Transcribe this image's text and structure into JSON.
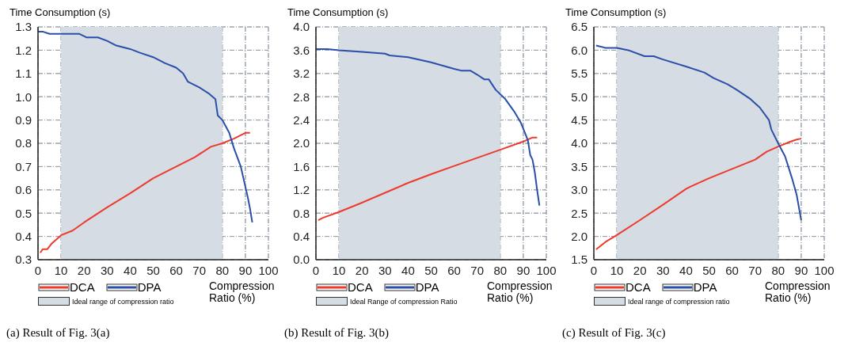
{
  "chart_data": [
    {
      "type": "line",
      "ylabel": "Time Consumption (s)",
      "xlabel": "Compression Ratio (%)",
      "xlim": [
        0,
        100
      ],
      "xticks": [
        0,
        10,
        20,
        30,
        40,
        50,
        60,
        70,
        80,
        90,
        100
      ],
      "ylim": [
        0.3,
        1.3
      ],
      "yticks": [
        {
          "value": 0.3,
          "label": "0.3"
        },
        {
          "value": 0.4,
          "label": "0.4"
        },
        {
          "value": 0.5,
          "label": "0.5"
        },
        {
          "value": 0.6,
          "label": "0.6"
        },
        {
          "value": 0.7,
          "label": "0.7"
        },
        {
          "value": 0.8,
          "label": "0.8"
        },
        {
          "value": 0.9,
          "label": "0.9"
        },
        {
          "value": 1.0,
          "label": "1.0"
        },
        {
          "value": 1.1,
          "label": "1.1"
        },
        {
          "value": 1.2,
          "label": "1.2"
        },
        {
          "value": 1.3,
          "label": "1.3"
        }
      ],
      "grid": true,
      "legend": "bottom",
      "line_style": "solid",
      "marker": "none",
      "bands": [
        {
          "axis": "x",
          "from": 10,
          "to": 80,
          "label": "Ideal range of compression ratio",
          "color": "#d5dce3"
        }
      ],
      "series": [
        {
          "name": "DCA",
          "color": "#ee3a2c",
          "x": [
            1,
            2,
            4,
            6,
            10,
            15,
            20,
            30,
            40,
            50,
            60,
            68,
            75,
            80,
            85,
            90,
            92
          ],
          "values": [
            0.33,
            0.345,
            0.345,
            0.37,
            0.405,
            0.425,
            0.46,
            0.525,
            0.585,
            0.65,
            0.7,
            0.74,
            0.785,
            0.8,
            0.82,
            0.845,
            0.845
          ]
        },
        {
          "name": "DPA",
          "color": "#2a4fa8",
          "x": [
            0,
            2,
            5,
            10,
            18,
            21,
            26,
            30,
            34,
            40,
            44,
            50,
            55,
            60,
            63,
            65,
            70,
            74,
            77,
            78,
            80,
            83,
            85,
            88,
            91,
            92,
            93
          ],
          "values": [
            1.28,
            1.28,
            1.27,
            1.27,
            1.27,
            1.255,
            1.255,
            1.24,
            1.22,
            1.205,
            1.19,
            1.17,
            1.145,
            1.125,
            1.1,
            1.065,
            1.04,
            1.015,
            0.99,
            0.92,
            0.9,
            0.845,
            0.78,
            0.7,
            0.57,
            0.52,
            0.46
          ]
        }
      ],
      "annotations": [
        "(a) Result of Fig. 3(a)"
      ]
    },
    {
      "type": "line",
      "ylabel": "Time Consumption (s)",
      "xlabel": "Compression Ratio (%)",
      "xlim": [
        0,
        100
      ],
      "xticks": [
        0,
        10,
        20,
        30,
        40,
        50,
        60,
        70,
        80,
        90,
        100
      ],
      "ylim": [
        0,
        4
      ],
      "yticks": [
        {
          "value": 0,
          "label": "0.0"
        },
        {
          "value": 0.4,
          "label": "0.4"
        },
        {
          "value": 0.8,
          "label": "0.8"
        },
        {
          "value": 1.2,
          "label": "1.2"
        },
        {
          "value": 1.6,
          "label": "1.6"
        },
        {
          "value": 2.0,
          "label": "2.0"
        },
        {
          "value": 2.4,
          "label": "2.4"
        },
        {
          "value": 2.8,
          "label": "2.8"
        },
        {
          "value": 3.2,
          "label": "3.2"
        },
        {
          "value": 3.6,
          "label": "3.6"
        },
        {
          "value": 4.0,
          "label": "4.0"
        }
      ],
      "grid": true,
      "legend": "bottom",
      "line_style": "solid",
      "marker": "none",
      "bands": [
        {
          "axis": "x",
          "from": 10,
          "to": 80,
          "label": "Ideal Range of compression Ratio",
          "color": "#d5dce3"
        }
      ],
      "series": [
        {
          "name": "DCA",
          "color": "#ee3a2c",
          "x": [
            1,
            3,
            10,
            20,
            30,
            40,
            50,
            60,
            70,
            80,
            90,
            94,
            96
          ],
          "values": [
            0.68,
            0.72,
            0.82,
            0.98,
            1.15,
            1.32,
            1.47,
            1.61,
            1.75,
            1.89,
            2.03,
            2.1,
            2.1
          ]
        },
        {
          "name": "DPA",
          "color": "#2a4fa8",
          "x": [
            0,
            5,
            10,
            20,
            30,
            32,
            40,
            50,
            60,
            63,
            67,
            70,
            73,
            75,
            78,
            82,
            86,
            89,
            91,
            92,
            93,
            94,
            95,
            96,
            97
          ],
          "values": [
            3.62,
            3.62,
            3.6,
            3.57,
            3.54,
            3.51,
            3.48,
            3.39,
            3.28,
            3.25,
            3.25,
            3.18,
            3.1,
            3.1,
            2.92,
            2.77,
            2.55,
            2.35,
            2.15,
            2.05,
            1.8,
            1.72,
            1.5,
            1.2,
            0.93
          ]
        }
      ],
      "annotations": [
        "(b) Result of Fig. 3(b)"
      ]
    },
    {
      "type": "line",
      "ylabel": "Time Consumption (s)",
      "xlabel": "Compression Ratio (%)",
      "xlim": [
        0,
        100
      ],
      "xticks": [
        0,
        10,
        20,
        30,
        40,
        50,
        60,
        70,
        80,
        90,
        100
      ],
      "ylim": [
        1.5,
        6.5
      ],
      "yticks": [
        {
          "value": 1.5,
          "label": "1.5"
        },
        {
          "value": 2.0,
          "label": "2.0"
        },
        {
          "value": 2.5,
          "label": "2.5"
        },
        {
          "value": 3.0,
          "label": "3.0"
        },
        {
          "value": 3.5,
          "label": "3.5"
        },
        {
          "value": 4.0,
          "label": "4.0"
        },
        {
          "value": 4.5,
          "label": "4.5"
        },
        {
          "value": 5.0,
          "label": "5.0"
        },
        {
          "value": 5.5,
          "label": "5.5"
        },
        {
          "value": 6.0,
          "label": "6.0"
        },
        {
          "value": 6.5,
          "label": "6.5"
        }
      ],
      "grid": true,
      "legend": "bottom",
      "line_style": "solid",
      "marker": "none",
      "bands": [
        {
          "axis": "x",
          "from": 10,
          "to": 80,
          "label": "Ideal range of compression ratio",
          "color": "#d5dce3"
        }
      ],
      "series": [
        {
          "name": "DCA",
          "color": "#ee3a2c",
          "x": [
            1,
            5,
            10,
            20,
            30,
            40,
            42,
            50,
            60,
            70,
            75,
            80,
            85,
            88,
            90
          ],
          "values": [
            1.72,
            1.88,
            2.03,
            2.35,
            2.68,
            3.02,
            3.07,
            3.25,
            3.45,
            3.65,
            3.82,
            3.93,
            4.03,
            4.08,
            4.1
          ]
        },
        {
          "name": "DPA",
          "color": "#2a4fa8",
          "x": [
            1,
            5,
            10,
            15,
            22,
            26,
            30,
            40,
            48,
            52,
            58,
            62,
            68,
            72,
            76,
            77,
            80,
            83,
            86,
            88,
            90
          ],
          "values": [
            6.1,
            6.05,
            6.05,
            6.0,
            5.87,
            5.87,
            5.8,
            5.65,
            5.52,
            5.4,
            5.27,
            5.15,
            4.95,
            4.77,
            4.5,
            4.3,
            4.0,
            3.72,
            3.25,
            2.9,
            2.35
          ]
        }
      ],
      "annotations": [
        "(c) Result of Fig. 3(c)"
      ]
    }
  ]
}
